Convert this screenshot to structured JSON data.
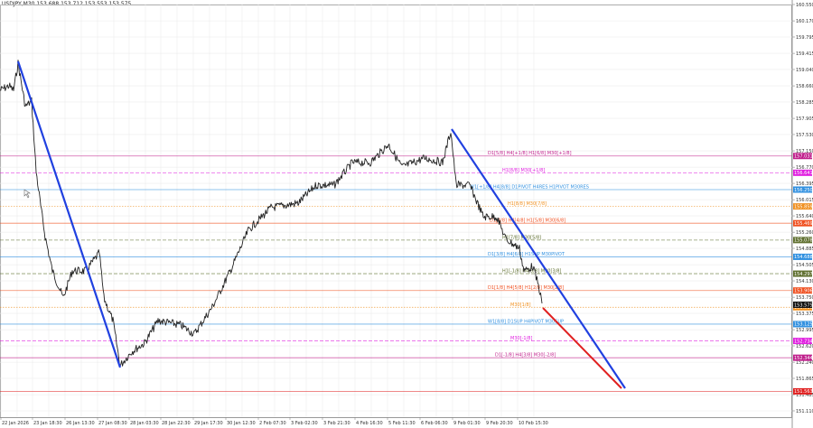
{
  "header": {
    "symbol": "USDJPY,M30",
    "ohlc": "153.688 153.712 153.553 153.575",
    "title": "USDJPY,M30  153.688 153.712 153.553 153.575"
  },
  "chart_data": {
    "type": "line",
    "title": "USDJPY,M30",
    "subtitle": "153.688 153.712 153.553 153.575",
    "xlabel": "",
    "ylabel": "",
    "ylim": [
      151.11,
      160.55
    ],
    "grid": true,
    "legend": "none",
    "price_axis_ticks": [
      "160.550",
      "160.170",
      "159.795",
      "159.415",
      "159.040",
      "158.660",
      "158.285",
      "157.905",
      "157.530",
      "157.150",
      "156.770",
      "156.395",
      "156.015",
      "155.640",
      "155.260",
      "154.885",
      "154.505",
      "154.130",
      "153.750",
      "153.375",
      "152.995",
      "152.620",
      "152.240",
      "151.865",
      "151.485",
      "151.110"
    ],
    "time_axis_ticks": [
      "22 Jan 2026",
      "23 Jan 18:30",
      "26 Jan 13:30",
      "27 Jan 08:30",
      "28 Jan 03:30",
      "28 Jan 22:30",
      "29 Jan 17:30",
      "30 Jan 12:30",
      "2 Feb 07:30",
      "3 Feb 02:30",
      "3 Feb 21:30",
      "4 Feb 16:30",
      "5 Feb 11:30",
      "6 Feb 06:30",
      "9 Feb 01:30",
      "9 Feb 20:30",
      "10 Feb 15:30"
    ],
    "price_series_approx": {
      "x": [
        "22 Jan",
        "23 Jan",
        "23 Jan late",
        "26 Jan",
        "27 Jan",
        "27 Jan 08:30",
        "28 Jan",
        "28 Jan 22:30",
        "29 Jan",
        "30 Jan",
        "2 Feb",
        "3 Feb",
        "4 Feb",
        "5 Feb",
        "6 Feb",
        "9 Feb",
        "9 Feb 20:30",
        "10 Feb 15:30"
      ],
      "y": [
        158.6,
        159.1,
        156.0,
        154.1,
        154.6,
        154.4,
        152.2,
        152.9,
        153.3,
        155.0,
        156.0,
        156.9,
        157.1,
        156.9,
        157.4,
        156.4,
        155.0,
        153.575
      ]
    },
    "level_lines": [
      {
        "label": "D1[5/8] H4[+1/8] H1[6/8] M30[+1/8]",
        "price": "157.031",
        "color": "#c0208c",
        "style": "solid"
      },
      {
        "label": "H1[8/8] M30[+1/8]",
        "price": "156.641",
        "color": "#e020e0",
        "style": "dashed"
      },
      {
        "label": "W1[+1/8] H4[8/8] D1PIVOT H4RES H1PIVOT M30RES",
        "price": "156.250",
        "color": "#3090e0",
        "style": "solid"
      },
      {
        "label": "H1[8/8] M30[7/8]",
        "price": "155.859",
        "color": "#f09020",
        "style": "dotted"
      },
      {
        "label": "D1[4/8] H4[4/8] H1[5/8] M30[6/8]",
        "price": "155.469",
        "color": "#f05020",
        "style": "solid"
      },
      {
        "label": "H1[7/8] M30[5/8]",
        "price": "155.078",
        "color": "#607030",
        "style": "dashed"
      },
      {
        "label": "D1[3/8] H4[6/8] H1SUP M30PIVOT",
        "price": "154.688",
        "color": "#3090e0",
        "style": "solid"
      },
      {
        "label": "H1[-1/8] H4[3/8] M30[3/8]",
        "price": "154.297",
        "color": "#607030",
        "style": "dashed"
      },
      {
        "label": "D1[1/8] H4[5/8] H1[2/8] M30[2/8]",
        "price": "153.906",
        "color": "#f05020",
        "style": "solid"
      },
      {
        "label": "M30[1/8]",
        "price": "153.516",
        "color": "#f09020",
        "style": "dotted"
      },
      {
        "label": "W1[8/8] D1SUP H4PIVOT M30SUP",
        "price": "153.125",
        "color": "#3090e0",
        "style": "solid"
      },
      {
        "label": "M30[-1/8]",
        "price": "152.734",
        "color": "#e020e0",
        "style": "dashed"
      },
      {
        "label": "D1[-1/8] H4[3/8] M30[-2/8]",
        "price": "152.344",
        "color": "#c0208c",
        "style": "solid"
      },
      {
        "label": "",
        "price": "151.563",
        "color": "#e02020",
        "style": "solid"
      }
    ],
    "current_price": "153.575",
    "trendlines": [
      {
        "color": "#2040e0",
        "from": [
          "22 Jan 2026 ~",
          "159.1"
        ],
        "to": [
          "27 Jan ~",
          "152.2"
        ]
      },
      {
        "color": "#2040e0",
        "from": [
          "6 Feb 06:30 ~",
          "157.4"
        ],
        "to": [
          "10 Feb beyond",
          "151.6"
        ]
      },
      {
        "color": "#e02020",
        "from": [
          "10 Feb 15:30 ~",
          "153.4"
        ],
        "to": [
          "forecast",
          "151.6"
        ]
      }
    ]
  },
  "axis_labels": {
    "current": {
      "text": "153.575",
      "bg": "#111111",
      "fg": "#ffffff"
    }
  }
}
